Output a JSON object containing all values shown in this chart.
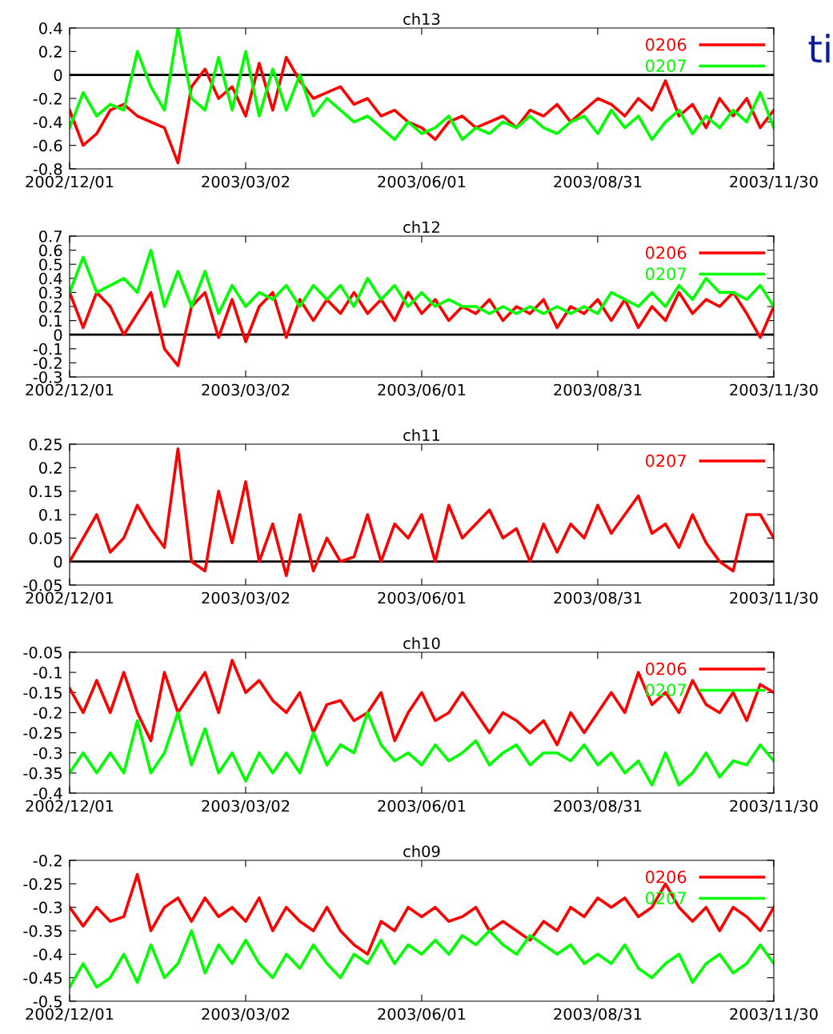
{
  "chart_data": [
    {
      "type": "line",
      "title": "ch13",
      "annotations": [
        "ti"
      ],
      "legend": "top right",
      "grid": false,
      "x": [
        "2002-12-01",
        "2002-12-08",
        "2002-12-15",
        "2002-12-22",
        "2002-12-29",
        "2003-01-05",
        "2003-01-12",
        "2003-01-19",
        "2003-01-26",
        "2003-02-02",
        "2003-02-09",
        "2003-02-16",
        "2003-02-23",
        "2003-03-02",
        "2003-03-09",
        "2003-03-16",
        "2003-03-23",
        "2003-03-30",
        "2003-04-06",
        "2003-04-13",
        "2003-04-20",
        "2003-04-27",
        "2003-05-04",
        "2003-05-11",
        "2003-05-18",
        "2003-05-25",
        "2003-06-01",
        "2003-06-08",
        "2003-06-15",
        "2003-06-22",
        "2003-06-29",
        "2003-07-06",
        "2003-07-13",
        "2003-07-20",
        "2003-07-27",
        "2003-08-03",
        "2003-08-10",
        "2003-08-17",
        "2003-08-24",
        "2003-08-31",
        "2003-09-07",
        "2003-09-14",
        "2003-09-21",
        "2003-09-28",
        "2003-10-05",
        "2003-10-12",
        "2003-10-19",
        "2003-10-26",
        "2003-11-02",
        "2003-11-09",
        "2003-11-16",
        "2003-11-23",
        "2003-11-30"
      ],
      "xlim": [
        "2002-12-01",
        "2003-11-30"
      ],
      "xticks": [
        {
          "value": "2002-12-01",
          "label": "2002/12/01"
        },
        {
          "value": "2003-03-02",
          "label": "2003/03/02"
        },
        {
          "value": "2003-06-01",
          "label": "2003/06/01"
        },
        {
          "value": "2003-08-31",
          "label": "2003/08/31"
        },
        {
          "value": "2003-11-30",
          "label": "2003/11/30"
        }
      ],
      "ylim": [
        -0.8,
        0.4
      ],
      "yticks": [
        -0.8,
        -0.6,
        -0.4,
        -0.2,
        0,
        0.2,
        0.4
      ],
      "ref_lines": [
        {
          "axis": "y",
          "value": 0,
          "color": "#000000"
        }
      ],
      "series": [
        {
          "name": "0206",
          "color": "#ff0000",
          "values": [
            -0.3,
            -0.6,
            -0.5,
            -0.3,
            -0.25,
            -0.35,
            -0.4,
            -0.45,
            -0.75,
            -0.1,
            0.05,
            -0.2,
            -0.1,
            -0.35,
            0.1,
            -0.3,
            0.15,
            -0.05,
            -0.2,
            -0.15,
            -0.1,
            -0.25,
            -0.2,
            -0.35,
            -0.3,
            -0.4,
            -0.45,
            -0.55,
            -0.4,
            -0.35,
            -0.45,
            -0.4,
            -0.35,
            -0.45,
            -0.3,
            -0.35,
            -0.25,
            -0.4,
            -0.3,
            -0.2,
            -0.25,
            -0.35,
            -0.2,
            -0.3,
            -0.05,
            -0.35,
            -0.25,
            -0.45,
            -0.2,
            -0.35,
            -0.2,
            -0.45,
            -0.3
          ]
        },
        {
          "name": "0207",
          "color": "#00ff00",
          "values": [
            -0.45,
            -0.15,
            -0.35,
            -0.25,
            -0.3,
            0.2,
            -0.1,
            -0.3,
            0.4,
            -0.2,
            -0.3,
            0.15,
            -0.3,
            0.2,
            -0.35,
            0.05,
            -0.3,
            0.0,
            -0.35,
            -0.2,
            -0.3,
            -0.4,
            -0.35,
            -0.45,
            -0.55,
            -0.4,
            -0.5,
            -0.45,
            -0.35,
            -0.55,
            -0.45,
            -0.5,
            -0.4,
            -0.45,
            -0.35,
            -0.45,
            -0.5,
            -0.4,
            -0.35,
            -0.5,
            -0.3,
            -0.45,
            -0.35,
            -0.55,
            -0.4,
            -0.3,
            -0.5,
            -0.35,
            -0.45,
            -0.3,
            -0.4,
            -0.15,
            -0.45
          ]
        }
      ]
    },
    {
      "type": "line",
      "title": "ch12",
      "legend": "top right",
      "grid": false,
      "x": [
        "2002-12-01",
        "2002-12-08",
        "2002-12-15",
        "2002-12-22",
        "2002-12-29",
        "2003-01-05",
        "2003-01-12",
        "2003-01-19",
        "2003-01-26",
        "2003-02-02",
        "2003-02-09",
        "2003-02-16",
        "2003-02-23",
        "2003-03-02",
        "2003-03-09",
        "2003-03-16",
        "2003-03-23",
        "2003-03-30",
        "2003-04-06",
        "2003-04-13",
        "2003-04-20",
        "2003-04-27",
        "2003-05-04",
        "2003-05-11",
        "2003-05-18",
        "2003-05-25",
        "2003-06-01",
        "2003-06-08",
        "2003-06-15",
        "2003-06-22",
        "2003-06-29",
        "2003-07-06",
        "2003-07-13",
        "2003-07-20",
        "2003-07-27",
        "2003-08-03",
        "2003-08-10",
        "2003-08-17",
        "2003-08-24",
        "2003-08-31",
        "2003-09-07",
        "2003-09-14",
        "2003-09-21",
        "2003-09-28",
        "2003-10-05",
        "2003-10-12",
        "2003-10-19",
        "2003-10-26",
        "2003-11-02",
        "2003-11-09",
        "2003-11-16",
        "2003-11-23",
        "2003-11-30"
      ],
      "xlim": [
        "2002-12-01",
        "2003-11-30"
      ],
      "xticks": [
        {
          "value": "2002-12-01",
          "label": "2002/12/01"
        },
        {
          "value": "2003-03-02",
          "label": "2003/03/02"
        },
        {
          "value": "2003-06-01",
          "label": "2003/06/01"
        },
        {
          "value": "2003-08-31",
          "label": "2003/08/31"
        },
        {
          "value": "2003-11-30",
          "label": "2003/11/30"
        }
      ],
      "ylim": [
        -0.3,
        0.7
      ],
      "yticks": [
        -0.3,
        -0.2,
        -0.1,
        0,
        0.1,
        0.2,
        0.3,
        0.4,
        0.5,
        0.6,
        0.7
      ],
      "ref_lines": [
        {
          "axis": "y",
          "value": 0,
          "color": "#000000"
        }
      ],
      "series": [
        {
          "name": "0206",
          "color": "#ff0000",
          "values": [
            0.3,
            0.05,
            0.3,
            0.2,
            0.0,
            0.15,
            0.3,
            -0.1,
            -0.22,
            0.2,
            0.3,
            -0.02,
            0.25,
            -0.05,
            0.2,
            0.3,
            -0.02,
            0.25,
            0.1,
            0.25,
            0.15,
            0.3,
            0.15,
            0.25,
            0.1,
            0.3,
            0.15,
            0.25,
            0.1,
            0.2,
            0.15,
            0.25,
            0.1,
            0.2,
            0.15,
            0.25,
            0.05,
            0.2,
            0.15,
            0.25,
            0.1,
            0.25,
            0.05,
            0.2,
            0.1,
            0.3,
            0.15,
            0.25,
            0.2,
            0.3,
            0.15,
            -0.02,
            0.2
          ]
        },
        {
          "name": "0207",
          "color": "#00ff00",
          "values": [
            0.3,
            0.55,
            0.3,
            0.35,
            0.4,
            0.3,
            0.6,
            0.2,
            0.45,
            0.2,
            0.45,
            0.15,
            0.35,
            0.2,
            0.3,
            0.25,
            0.35,
            0.2,
            0.35,
            0.25,
            0.35,
            0.2,
            0.4,
            0.25,
            0.35,
            0.2,
            0.3,
            0.2,
            0.25,
            0.2,
            0.2,
            0.15,
            0.2,
            0.15,
            0.2,
            0.15,
            0.2,
            0.15,
            0.2,
            0.15,
            0.3,
            0.25,
            0.2,
            0.3,
            0.2,
            0.35,
            0.25,
            0.4,
            0.3,
            0.3,
            0.25,
            0.35,
            0.2
          ]
        }
      ]
    },
    {
      "type": "line",
      "title": "ch11",
      "legend": "top right",
      "grid": false,
      "x": [
        "2002-12-01",
        "2002-12-08",
        "2002-12-15",
        "2002-12-22",
        "2002-12-29",
        "2003-01-05",
        "2003-01-12",
        "2003-01-19",
        "2003-01-26",
        "2003-02-02",
        "2003-02-09",
        "2003-02-16",
        "2003-02-23",
        "2003-03-02",
        "2003-03-09",
        "2003-03-16",
        "2003-03-23",
        "2003-03-30",
        "2003-04-06",
        "2003-04-13",
        "2003-04-20",
        "2003-04-27",
        "2003-05-04",
        "2003-05-11",
        "2003-05-18",
        "2003-05-25",
        "2003-06-01",
        "2003-06-08",
        "2003-06-15",
        "2003-06-22",
        "2003-06-29",
        "2003-07-06",
        "2003-07-13",
        "2003-07-20",
        "2003-07-27",
        "2003-08-03",
        "2003-08-10",
        "2003-08-17",
        "2003-08-24",
        "2003-08-31",
        "2003-09-07",
        "2003-09-14",
        "2003-09-21",
        "2003-09-28",
        "2003-10-05",
        "2003-10-12",
        "2003-10-19",
        "2003-10-26",
        "2003-11-02",
        "2003-11-09",
        "2003-11-16",
        "2003-11-23",
        "2003-11-30"
      ],
      "xlim": [
        "2002-12-01",
        "2003-11-30"
      ],
      "xticks": [
        {
          "value": "2002-12-01",
          "label": "2002/12/01"
        },
        {
          "value": "2003-03-02",
          "label": "2003/03/02"
        },
        {
          "value": "2003-06-01",
          "label": "2003/06/01"
        },
        {
          "value": "2003-08-31",
          "label": "2003/08/31"
        },
        {
          "value": "2003-11-30",
          "label": "2003/11/30"
        }
      ],
      "ylim": [
        -0.05,
        0.25
      ],
      "yticks": [
        -0.05,
        0,
        0.05,
        0.1,
        0.15,
        0.2,
        0.25
      ],
      "ref_lines": [
        {
          "axis": "y",
          "value": 0,
          "color": "#000000"
        }
      ],
      "series": [
        {
          "name": "0207",
          "color": "#ff0000",
          "values": [
            0.0,
            0.05,
            0.1,
            0.02,
            0.05,
            0.12,
            0.07,
            0.03,
            0.24,
            0.0,
            -0.02,
            0.15,
            0.04,
            0.17,
            0.0,
            0.08,
            -0.03,
            0.1,
            -0.02,
            0.05,
            0.0,
            0.01,
            0.1,
            0.0,
            0.08,
            0.05,
            0.1,
            0.0,
            0.12,
            0.05,
            0.08,
            0.11,
            0.05,
            0.07,
            0.0,
            0.08,
            0.02,
            0.08,
            0.05,
            0.12,
            0.06,
            0.1,
            0.14,
            0.06,
            0.08,
            0.03,
            0.1,
            0.04,
            0.0,
            -0.02,
            0.1,
            0.1,
            0.05
          ]
        }
      ]
    },
    {
      "type": "line",
      "title": "ch10",
      "legend": "top right",
      "grid": false,
      "x": [
        "2002-12-01",
        "2002-12-08",
        "2002-12-15",
        "2002-12-22",
        "2002-12-29",
        "2003-01-05",
        "2003-01-12",
        "2003-01-19",
        "2003-01-26",
        "2003-02-02",
        "2003-02-09",
        "2003-02-16",
        "2003-02-23",
        "2003-03-02",
        "2003-03-09",
        "2003-03-16",
        "2003-03-23",
        "2003-03-30",
        "2003-04-06",
        "2003-04-13",
        "2003-04-20",
        "2003-04-27",
        "2003-05-04",
        "2003-05-11",
        "2003-05-18",
        "2003-05-25",
        "2003-06-01",
        "2003-06-08",
        "2003-06-15",
        "2003-06-22",
        "2003-06-29",
        "2003-07-06",
        "2003-07-13",
        "2003-07-20",
        "2003-07-27",
        "2003-08-03",
        "2003-08-10",
        "2003-08-17",
        "2003-08-24",
        "2003-08-31",
        "2003-09-07",
        "2003-09-14",
        "2003-09-21",
        "2003-09-28",
        "2003-10-05",
        "2003-10-12",
        "2003-10-19",
        "2003-10-26",
        "2003-11-02",
        "2003-11-09",
        "2003-11-16",
        "2003-11-23",
        "2003-11-30"
      ],
      "xlim": [
        "2002-12-01",
        "2003-11-30"
      ],
      "xticks": [
        {
          "value": "2002-12-01",
          "label": "2002/12/01"
        },
        {
          "value": "2003-03-02",
          "label": "2003/03/02"
        },
        {
          "value": "2003-06-01",
          "label": "2003/06/01"
        },
        {
          "value": "2003-08-31",
          "label": "2003/08/31"
        },
        {
          "value": "2003-11-30",
          "label": "2003/11/30"
        }
      ],
      "ylim": [
        -0.4,
        -0.05
      ],
      "yticks": [
        -0.4,
        -0.35,
        -0.3,
        -0.25,
        -0.2,
        -0.15,
        -0.1,
        -0.05
      ],
      "series": [
        {
          "name": "0206",
          "color": "#ff0000",
          "values": [
            -0.14,
            -0.2,
            -0.12,
            -0.2,
            -0.1,
            -0.2,
            -0.27,
            -0.1,
            -0.2,
            -0.15,
            -0.1,
            -0.2,
            -0.07,
            -0.15,
            -0.12,
            -0.17,
            -0.2,
            -0.15,
            -0.25,
            -0.18,
            -0.17,
            -0.22,
            -0.2,
            -0.15,
            -0.27,
            -0.2,
            -0.15,
            -0.22,
            -0.2,
            -0.15,
            -0.2,
            -0.25,
            -0.2,
            -0.22,
            -0.25,
            -0.22,
            -0.28,
            -0.2,
            -0.25,
            -0.2,
            -0.15,
            -0.2,
            -0.1,
            -0.18,
            -0.15,
            -0.2,
            -0.12,
            -0.18,
            -0.2,
            -0.15,
            -0.22,
            -0.13,
            -0.15
          ]
        },
        {
          "name": "0207",
          "color": "#00ff00",
          "values": [
            -0.35,
            -0.3,
            -0.35,
            -0.3,
            -0.35,
            -0.22,
            -0.35,
            -0.3,
            -0.2,
            -0.33,
            -0.24,
            -0.35,
            -0.3,
            -0.37,
            -0.3,
            -0.35,
            -0.3,
            -0.35,
            -0.25,
            -0.33,
            -0.28,
            -0.3,
            -0.2,
            -0.28,
            -0.32,
            -0.3,
            -0.33,
            -0.28,
            -0.32,
            -0.3,
            -0.27,
            -0.33,
            -0.3,
            -0.28,
            -0.33,
            -0.3,
            -0.3,
            -0.32,
            -0.28,
            -0.33,
            -0.3,
            -0.35,
            -0.32,
            -0.38,
            -0.3,
            -0.38,
            -0.35,
            -0.3,
            -0.36,
            -0.32,
            -0.33,
            -0.28,
            -0.32
          ]
        }
      ]
    },
    {
      "type": "line",
      "title": "ch09",
      "legend": "top right",
      "grid": false,
      "x": [
        "2002-12-01",
        "2002-12-08",
        "2002-12-15",
        "2002-12-22",
        "2002-12-29",
        "2003-01-05",
        "2003-01-12",
        "2003-01-19",
        "2003-01-26",
        "2003-02-02",
        "2003-02-09",
        "2003-02-16",
        "2003-02-23",
        "2003-03-02",
        "2003-03-09",
        "2003-03-16",
        "2003-03-23",
        "2003-03-30",
        "2003-04-06",
        "2003-04-13",
        "2003-04-20",
        "2003-04-27",
        "2003-05-04",
        "2003-05-11",
        "2003-05-18",
        "2003-05-25",
        "2003-06-01",
        "2003-06-08",
        "2003-06-15",
        "2003-06-22",
        "2003-06-29",
        "2003-07-06",
        "2003-07-13",
        "2003-07-20",
        "2003-07-27",
        "2003-08-03",
        "2003-08-10",
        "2003-08-17",
        "2003-08-24",
        "2003-08-31",
        "2003-09-07",
        "2003-09-14",
        "2003-09-21",
        "2003-09-28",
        "2003-10-05",
        "2003-10-12",
        "2003-10-19",
        "2003-10-26",
        "2003-11-02",
        "2003-11-09",
        "2003-11-16",
        "2003-11-23",
        "2003-11-30"
      ],
      "xlim": [
        "2002-12-01",
        "2003-11-30"
      ],
      "xticks": [
        {
          "value": "2002-12-01",
          "label": "2002/12/01"
        },
        {
          "value": "2003-03-02",
          "label": "2003/03/02"
        },
        {
          "value": "2003-06-01",
          "label": "2003/06/01"
        },
        {
          "value": "2003-08-31",
          "label": "2003/08/31"
        },
        {
          "value": "2003-11-30",
          "label": "2003/11/30"
        }
      ],
      "ylim": [
        -0.5,
        -0.2
      ],
      "yticks": [
        -0.5,
        -0.45,
        -0.4,
        -0.35,
        -0.3,
        -0.25,
        -0.2
      ],
      "series": [
        {
          "name": "0206",
          "color": "#ff0000",
          "values": [
            -0.3,
            -0.34,
            -0.3,
            -0.33,
            -0.32,
            -0.23,
            -0.35,
            -0.3,
            -0.28,
            -0.33,
            -0.28,
            -0.32,
            -0.3,
            -0.33,
            -0.28,
            -0.35,
            -0.3,
            -0.33,
            -0.35,
            -0.3,
            -0.35,
            -0.38,
            -0.4,
            -0.33,
            -0.35,
            -0.3,
            -0.32,
            -0.3,
            -0.33,
            -0.32,
            -0.3,
            -0.35,
            -0.33,
            -0.35,
            -0.37,
            -0.33,
            -0.35,
            -0.3,
            -0.32,
            -0.28,
            -0.3,
            -0.28,
            -0.32,
            -0.3,
            -0.25,
            -0.3,
            -0.33,
            -0.3,
            -0.35,
            -0.3,
            -0.32,
            -0.35,
            -0.3
          ]
        },
        {
          "name": "0207",
          "color": "#00ff00",
          "values": [
            -0.47,
            -0.42,
            -0.47,
            -0.45,
            -0.4,
            -0.46,
            -0.38,
            -0.45,
            -0.42,
            -0.35,
            -0.44,
            -0.38,
            -0.42,
            -0.37,
            -0.42,
            -0.45,
            -0.4,
            -0.43,
            -0.38,
            -0.42,
            -0.45,
            -0.4,
            -0.42,
            -0.37,
            -0.42,
            -0.38,
            -0.4,
            -0.37,
            -0.4,
            -0.36,
            -0.38,
            -0.35,
            -0.38,
            -0.4,
            -0.36,
            -0.38,
            -0.4,
            -0.38,
            -0.42,
            -0.4,
            -0.42,
            -0.38,
            -0.43,
            -0.45,
            -0.42,
            -0.4,
            -0.46,
            -0.42,
            -0.4,
            -0.44,
            -0.42,
            -0.38,
            -0.42
          ]
        }
      ]
    }
  ]
}
